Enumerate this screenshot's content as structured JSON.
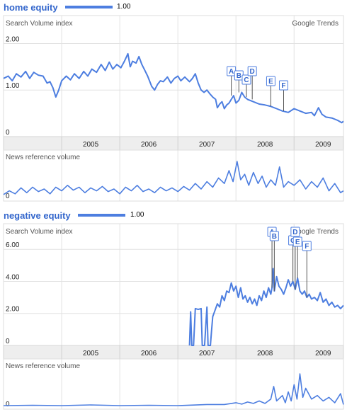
{
  "chart_data": [
    {
      "type": "line",
      "title": "home equity",
      "legend_value": "1.00",
      "ylabel": "Search Volume index",
      "source_label": "Google Trends",
      "yticks": [
        "0",
        "1.00",
        "2.00"
      ],
      "ylim": [
        0,
        2.6
      ],
      "x_labels": [
        "2005",
        "2006",
        "2007",
        "2008",
        "2009"
      ],
      "xlim": [
        2004.0,
        2009.85
      ],
      "series": [
        {
          "values": [
            [
              2004.0,
              1.25
            ],
            [
              2004.08,
              1.3
            ],
            [
              2004.15,
              1.2
            ],
            [
              2004.22,
              1.35
            ],
            [
              2004.3,
              1.28
            ],
            [
              2004.38,
              1.4
            ],
            [
              2004.45,
              1.25
            ],
            [
              2004.52,
              1.38
            ],
            [
              2004.6,
              1.32
            ],
            [
              2004.68,
              1.3
            ],
            [
              2004.75,
              1.15
            ],
            [
              2004.8,
              1.18
            ],
            [
              2004.85,
              1.05
            ],
            [
              2004.9,
              0.85
            ],
            [
              2004.95,
              1.0
            ],
            [
              2005.0,
              1.2
            ],
            [
              2005.08,
              1.3
            ],
            [
              2005.15,
              1.22
            ],
            [
              2005.22,
              1.35
            ],
            [
              2005.3,
              1.25
            ],
            [
              2005.38,
              1.4
            ],
            [
              2005.45,
              1.3
            ],
            [
              2005.52,
              1.45
            ],
            [
              2005.6,
              1.38
            ],
            [
              2005.68,
              1.55
            ],
            [
              2005.75,
              1.42
            ],
            [
              2005.82,
              1.6
            ],
            [
              2005.88,
              1.45
            ],
            [
              2005.95,
              1.55
            ],
            [
              2006.02,
              1.48
            ],
            [
              2006.08,
              1.62
            ],
            [
              2006.14,
              1.78
            ],
            [
              2006.18,
              1.5
            ],
            [
              2006.22,
              1.62
            ],
            [
              2006.28,
              1.58
            ],
            [
              2006.33,
              1.72
            ],
            [
              2006.38,
              1.55
            ],
            [
              2006.42,
              1.45
            ],
            [
              2006.48,
              1.3
            ],
            [
              2006.55,
              1.08
            ],
            [
              2006.6,
              1.0
            ],
            [
              2006.65,
              1.12
            ],
            [
              2006.7,
              1.2
            ],
            [
              2006.75,
              1.18
            ],
            [
              2006.82,
              1.28
            ],
            [
              2006.88,
              1.15
            ],
            [
              2006.94,
              1.25
            ],
            [
              2007.0,
              1.3
            ],
            [
              2007.05,
              1.2
            ],
            [
              2007.12,
              1.28
            ],
            [
              2007.2,
              1.18
            ],
            [
              2007.25,
              1.25
            ],
            [
              2007.3,
              1.35
            ],
            [
              2007.35,
              1.15
            ],
            [
              2007.4,
              1.0
            ],
            [
              2007.45,
              0.95
            ],
            [
              2007.5,
              1.0
            ],
            [
              2007.55,
              0.92
            ],
            [
              2007.6,
              0.85
            ],
            [
              2007.65,
              0.8
            ],
            [
              2007.68,
              0.62
            ],
            [
              2007.72,
              0.7
            ],
            [
              2007.76,
              0.75
            ],
            [
              2007.8,
              0.6
            ],
            [
              2007.84,
              0.68
            ],
            [
              2007.88,
              0.72
            ],
            [
              2007.92,
              0.8
            ],
            [
              2007.96,
              0.88
            ],
            [
              2008.0,
              0.72
            ],
            [
              2008.05,
              0.78
            ],
            [
              2008.1,
              0.95
            ],
            [
              2008.15,
              0.85
            ],
            [
              2008.2,
              0.8
            ],
            [
              2008.3,
              0.75
            ],
            [
              2008.4,
              0.7
            ],
            [
              2008.5,
              0.68
            ],
            [
              2008.6,
              0.65
            ],
            [
              2008.7,
              0.6
            ],
            [
              2008.8,
              0.55
            ],
            [
              2008.9,
              0.52
            ],
            [
              2009.0,
              0.6
            ],
            [
              2009.1,
              0.55
            ],
            [
              2009.2,
              0.5
            ],
            [
              2009.3,
              0.52
            ],
            [
              2009.35,
              0.45
            ],
            [
              2009.42,
              0.62
            ],
            [
              2009.48,
              0.48
            ],
            [
              2009.55,
              0.42
            ],
            [
              2009.65,
              0.4
            ],
            [
              2009.75,
              0.35
            ],
            [
              2009.82,
              0.3
            ],
            [
              2009.85,
              0.33
            ]
          ]
        }
      ],
      "annotations": [
        {
          "label": "A",
          "x": 2007.92,
          "y": 0.88
        },
        {
          "label": "B",
          "x": 2008.05,
          "y": 0.95
        },
        {
          "label": "C",
          "x": 2008.18,
          "y": 0.85
        },
        {
          "label": "D",
          "x": 2008.28,
          "y": 0.8
        },
        {
          "label": "E",
          "x": 2008.6,
          "y": 0.65
        },
        {
          "label": "F",
          "x": 2008.82,
          "y": 0.55
        }
      ],
      "news_label": "News reference volume",
      "news_ytick": "0",
      "news_values": [
        [
          2004.0,
          0.1
        ],
        [
          2004.1,
          0.2
        ],
        [
          2004.2,
          0.12
        ],
        [
          2004.3,
          0.28
        ],
        [
          2004.4,
          0.15
        ],
        [
          2004.5,
          0.3
        ],
        [
          2004.6,
          0.18
        ],
        [
          2004.7,
          0.25
        ],
        [
          2004.8,
          0.12
        ],
        [
          2004.9,
          0.3
        ],
        [
          2005.0,
          0.2
        ],
        [
          2005.1,
          0.35
        ],
        [
          2005.2,
          0.22
        ],
        [
          2005.3,
          0.3
        ],
        [
          2005.4,
          0.15
        ],
        [
          2005.5,
          0.28
        ],
        [
          2005.6,
          0.2
        ],
        [
          2005.7,
          0.32
        ],
        [
          2005.8,
          0.18
        ],
        [
          2005.9,
          0.25
        ],
        [
          2006.0,
          0.12
        ],
        [
          2006.1,
          0.3
        ],
        [
          2006.2,
          0.2
        ],
        [
          2006.3,
          0.35
        ],
        [
          2006.4,
          0.18
        ],
        [
          2006.5,
          0.25
        ],
        [
          2006.6,
          0.15
        ],
        [
          2006.7,
          0.3
        ],
        [
          2006.8,
          0.2
        ],
        [
          2006.9,
          0.28
        ],
        [
          2007.0,
          0.18
        ],
        [
          2007.1,
          0.32
        ],
        [
          2007.2,
          0.22
        ],
        [
          2007.3,
          0.4
        ],
        [
          2007.4,
          0.25
        ],
        [
          2007.5,
          0.45
        ],
        [
          2007.6,
          0.3
        ],
        [
          2007.7,
          0.55
        ],
        [
          2007.8,
          0.4
        ],
        [
          2007.88,
          0.75
        ],
        [
          2007.95,
          0.45
        ],
        [
          2008.02,
          1.0
        ],
        [
          2008.08,
          0.5
        ],
        [
          2008.15,
          0.65
        ],
        [
          2008.22,
          0.35
        ],
        [
          2008.3,
          0.7
        ],
        [
          2008.38,
          0.4
        ],
        [
          2008.45,
          0.6
        ],
        [
          2008.52,
          0.3
        ],
        [
          2008.6,
          0.5
        ],
        [
          2008.68,
          0.35
        ],
        [
          2008.75,
          0.85
        ],
        [
          2008.82,
          0.3
        ],
        [
          2008.9,
          0.45
        ],
        [
          2009.0,
          0.35
        ],
        [
          2009.1,
          0.5
        ],
        [
          2009.2,
          0.25
        ],
        [
          2009.3,
          0.45
        ],
        [
          2009.4,
          0.3
        ],
        [
          2009.5,
          0.55
        ],
        [
          2009.6,
          0.2
        ],
        [
          2009.7,
          0.4
        ],
        [
          2009.8,
          0.15
        ],
        [
          2009.85,
          0.2
        ]
      ]
    },
    {
      "type": "line",
      "title": "negative equity",
      "legend_value": "1.00",
      "ylabel": "Search Volume index",
      "source_label": "Google Trends",
      "yticks": [
        "0",
        "2.00",
        "4.00",
        "6.00"
      ],
      "ylim": [
        0,
        7.6
      ],
      "x_labels": [
        "2005",
        "2006",
        "2007",
        "2008",
        "2009"
      ],
      "xlim": [
        2004.0,
        2009.85
      ],
      "series": [
        {
          "values": [
            [
              2007.2,
              0.0
            ],
            [
              2007.22,
              2.1
            ],
            [
              2007.24,
              0.0
            ],
            [
              2007.27,
              0.0
            ],
            [
              2007.3,
              2.3
            ],
            [
              2007.35,
              2.25
            ],
            [
              2007.4,
              2.3
            ],
            [
              2007.42,
              0.0
            ],
            [
              2007.46,
              0.0
            ],
            [
              2007.5,
              2.4
            ],
            [
              2007.52,
              0.0
            ],
            [
              2007.56,
              0.0
            ],
            [
              2007.58,
              0.9
            ],
            [
              2007.6,
              1.8
            ],
            [
              2007.64,
              2.2
            ],
            [
              2007.68,
              2.6
            ],
            [
              2007.72,
              2.4
            ],
            [
              2007.76,
              3.1
            ],
            [
              2007.8,
              2.8
            ],
            [
              2007.84,
              3.4
            ],
            [
              2007.88,
              3.3
            ],
            [
              2007.92,
              3.9
            ],
            [
              2007.96,
              3.4
            ],
            [
              2008.0,
              3.7
            ],
            [
              2008.04,
              3.0
            ],
            [
              2008.08,
              3.6
            ],
            [
              2008.12,
              2.9
            ],
            [
              2008.16,
              3.1
            ],
            [
              2008.2,
              2.7
            ],
            [
              2008.24,
              3.0
            ],
            [
              2008.28,
              2.6
            ],
            [
              2008.32,
              2.9
            ],
            [
              2008.36,
              2.5
            ],
            [
              2008.4,
              3.1
            ],
            [
              2008.44,
              2.8
            ],
            [
              2008.48,
              3.4
            ],
            [
              2008.52,
              3.0
            ],
            [
              2008.56,
              3.6
            ],
            [
              2008.6,
              3.2
            ],
            [
              2008.62,
              3.6
            ],
            [
              2008.64,
              4.8
            ],
            [
              2008.66,
              3.4
            ],
            [
              2008.7,
              4.3
            ],
            [
              2008.74,
              3.7
            ],
            [
              2008.78,
              3.5
            ],
            [
              2008.82,
              3.2
            ],
            [
              2008.86,
              3.6
            ],
            [
              2008.9,
              4.1
            ],
            [
              2008.94,
              3.7
            ],
            [
              2008.98,
              4.0
            ],
            [
              2009.02,
              3.5
            ],
            [
              2009.06,
              4.2
            ],
            [
              2009.1,
              3.4
            ],
            [
              2009.14,
              3.2
            ],
            [
              2009.18,
              3.4
            ],
            [
              2009.22,
              3.0
            ],
            [
              2009.26,
              3.2
            ],
            [
              2009.3,
              2.9
            ],
            [
              2009.35,
              3.0
            ],
            [
              2009.4,
              2.8
            ],
            [
              2009.45,
              3.3
            ],
            [
              2009.5,
              2.7
            ],
            [
              2009.55,
              2.9
            ],
            [
              2009.6,
              2.5
            ],
            [
              2009.65,
              2.7
            ],
            [
              2009.7,
              2.4
            ],
            [
              2009.75,
              2.5
            ],
            [
              2009.8,
              2.3
            ],
            [
              2009.85,
              2.5
            ]
          ]
        }
      ],
      "annotations": [
        {
          "label": "A",
          "x": 2008.62,
          "y": 3.6
        },
        {
          "label": "B",
          "x": 2008.66,
          "y": 3.4
        },
        {
          "label": "C",
          "x": 2008.98,
          "y": 4.0
        },
        {
          "label": "D",
          "x": 2009.02,
          "y": 3.5
        },
        {
          "label": "E",
          "x": 2009.06,
          "y": 4.2
        },
        {
          "label": "F",
          "x": 2009.22,
          "y": 3.0
        }
      ],
      "news_label": "News reference volume",
      "news_ytick": "0",
      "news_values": [
        [
          2004.0,
          0.02
        ],
        [
          2004.5,
          0.03
        ],
        [
          2005.0,
          0.02
        ],
        [
          2005.5,
          0.04
        ],
        [
          2006.0,
          0.02
        ],
        [
          2006.5,
          0.03
        ],
        [
          2007.0,
          0.02
        ],
        [
          2007.5,
          0.05
        ],
        [
          2007.8,
          0.05
        ],
        [
          2008.0,
          0.1
        ],
        [
          2008.1,
          0.06
        ],
        [
          2008.2,
          0.12
        ],
        [
          2008.3,
          0.08
        ],
        [
          2008.4,
          0.15
        ],
        [
          2008.5,
          0.08
        ],
        [
          2008.6,
          0.2
        ],
        [
          2008.65,
          0.55
        ],
        [
          2008.7,
          0.15
        ],
        [
          2008.8,
          0.3
        ],
        [
          2008.85,
          0.1
        ],
        [
          2008.9,
          0.4
        ],
        [
          2008.95,
          0.15
        ],
        [
          2009.0,
          0.6
        ],
        [
          2009.05,
          0.2
        ],
        [
          2009.1,
          0.9
        ],
        [
          2009.15,
          0.25
        ],
        [
          2009.2,
          0.5
        ],
        [
          2009.3,
          0.2
        ],
        [
          2009.4,
          0.3
        ],
        [
          2009.5,
          0.15
        ],
        [
          2009.6,
          0.25
        ],
        [
          2009.7,
          0.1
        ],
        [
          2009.8,
          0.35
        ],
        [
          2009.85,
          0.05
        ]
      ]
    }
  ]
}
